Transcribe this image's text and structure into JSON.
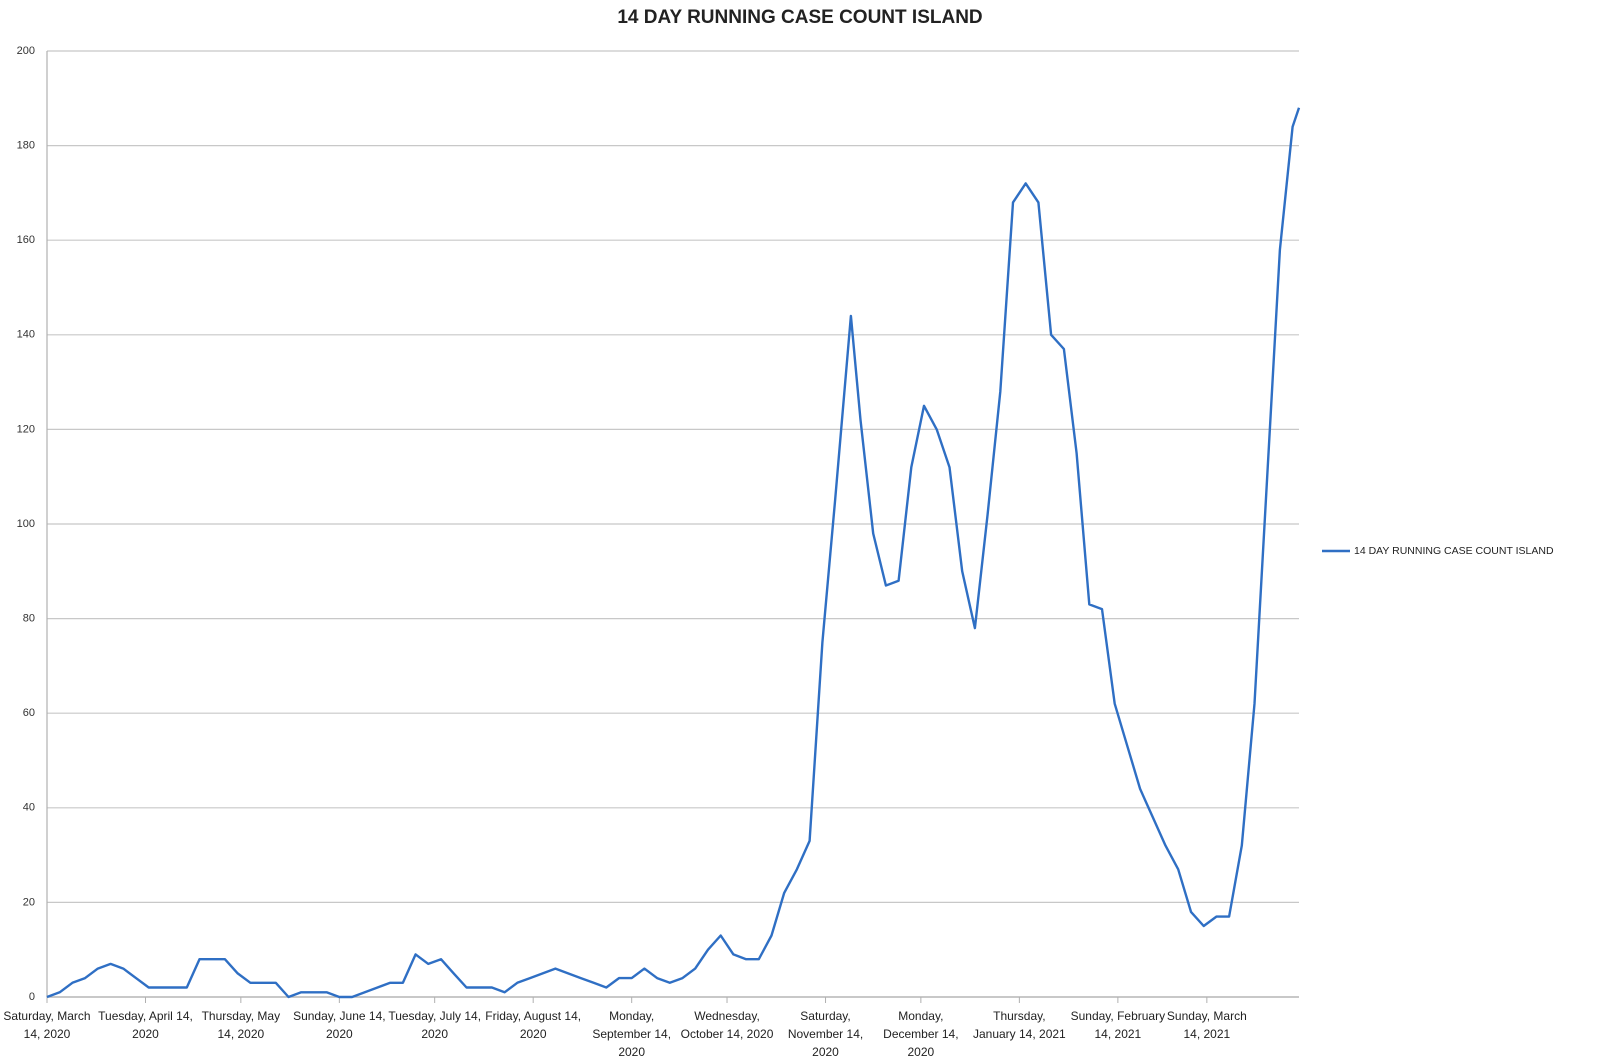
{
  "chart_data": {
    "type": "line",
    "title": "14 DAY RUNNING CASE COUNT ISLAND",
    "x": [
      "2020-03-14",
      "2020-03-18",
      "2020-03-22",
      "2020-03-26",
      "2020-03-30",
      "2020-04-03",
      "2020-04-07",
      "2020-04-11",
      "2020-04-15",
      "2020-04-19",
      "2020-04-23",
      "2020-04-27",
      "2020-05-01",
      "2020-05-05",
      "2020-05-09",
      "2020-05-13",
      "2020-05-17",
      "2020-05-21",
      "2020-05-25",
      "2020-05-29",
      "2020-06-02",
      "2020-06-06",
      "2020-06-10",
      "2020-06-14",
      "2020-06-18",
      "2020-06-22",
      "2020-06-26",
      "2020-06-30",
      "2020-07-04",
      "2020-07-08",
      "2020-07-12",
      "2020-07-16",
      "2020-07-20",
      "2020-07-24",
      "2020-07-28",
      "2020-08-01",
      "2020-08-05",
      "2020-08-09",
      "2020-08-13",
      "2020-08-17",
      "2020-08-21",
      "2020-08-25",
      "2020-08-29",
      "2020-09-02",
      "2020-09-06",
      "2020-09-10",
      "2020-09-14",
      "2020-09-18",
      "2020-09-22",
      "2020-09-26",
      "2020-09-30",
      "2020-10-04",
      "2020-10-08",
      "2020-10-12",
      "2020-10-16",
      "2020-10-20",
      "2020-10-24",
      "2020-10-28",
      "2020-11-01",
      "2020-11-05",
      "2020-11-09",
      "2020-11-13",
      "2020-11-17",
      "2020-11-22",
      "2020-11-25",
      "2020-11-29",
      "2020-12-03",
      "2020-12-07",
      "2020-12-11",
      "2020-12-15",
      "2020-12-19",
      "2020-12-23",
      "2020-12-27",
      "2020-12-31",
      "2021-01-04",
      "2021-01-08",
      "2021-01-12",
      "2021-01-16",
      "2021-01-20",
      "2021-01-24",
      "2021-01-28",
      "2021-02-01",
      "2021-02-05",
      "2021-02-09",
      "2021-02-13",
      "2021-02-17",
      "2021-02-21",
      "2021-02-25",
      "2021-03-01",
      "2021-03-05",
      "2021-03-09",
      "2021-03-13",
      "2021-03-17",
      "2021-03-21",
      "2021-03-25",
      "2021-03-29",
      "2021-04-02",
      "2021-04-06",
      "2021-04-10",
      "2021-04-12"
    ],
    "series": [
      {
        "name": "14 DAY RUNNING CASE COUNT ISLAND",
        "color": "#2f6fc4",
        "values": [
          0,
          1,
          3,
          4,
          6,
          7,
          6,
          4,
          2,
          2,
          2,
          2,
          8,
          8,
          8,
          5,
          3,
          3,
          3,
          0,
          1,
          1,
          1,
          0,
          0,
          1,
          2,
          3,
          3,
          9,
          7,
          8,
          5,
          2,
          2,
          2,
          1,
          3,
          4,
          5,
          6,
          5,
          4,
          3,
          2,
          4,
          4,
          6,
          4,
          3,
          4,
          6,
          10,
          13,
          9,
          8,
          8,
          13,
          22,
          27,
          33,
          75,
          105,
          144,
          122,
          98,
          87,
          88,
          112,
          125,
          120,
          112,
          90,
          78,
          102,
          128,
          168,
          172,
          168,
          140,
          137,
          115,
          83,
          82,
          62,
          53,
          44,
          38,
          32,
          27,
          18,
          15,
          17,
          17,
          32,
          62,
          110,
          158,
          184,
          188
        ]
      }
    ],
    "xlim": [
      "2020-03-14",
      "2021-04-12"
    ],
    "xticks": [
      {
        "value": "2020-03-14",
        "label": "Saturday, March 14, 2020"
      },
      {
        "value": "2020-04-14",
        "label": "Tuesday, April 14, 2020"
      },
      {
        "value": "2020-05-14",
        "label": "Thursday, May 14, 2020"
      },
      {
        "value": "2020-06-14",
        "label": "Sunday, June 14, 2020"
      },
      {
        "value": "2020-07-14",
        "label": "Tuesday, July 14, 2020"
      },
      {
        "value": "2020-08-14",
        "label": "Friday, August 14, 2020"
      },
      {
        "value": "2020-09-14",
        "label": "Monday, September 14, 2020"
      },
      {
        "value": "2020-10-14",
        "label": "Wednesday, October 14, 2020"
      },
      {
        "value": "2020-11-14",
        "label": "Saturday, November 14, 2020"
      },
      {
        "value": "2020-12-14",
        "label": "Monday, December 14, 2020"
      },
      {
        "value": "2021-01-14",
        "label": "Thursday, January 14, 2021"
      },
      {
        "value": "2021-02-14",
        "label": "Sunday, February 14, 2021"
      },
      {
        "value": "2021-03-14",
        "label": "Sunday, March 14, 2021"
      }
    ],
    "ylim": [
      0,
      200
    ],
    "yticks": [
      0,
      20,
      40,
      60,
      80,
      100,
      120,
      140,
      160,
      180,
      200
    ],
    "grid": true,
    "legend": "right"
  }
}
